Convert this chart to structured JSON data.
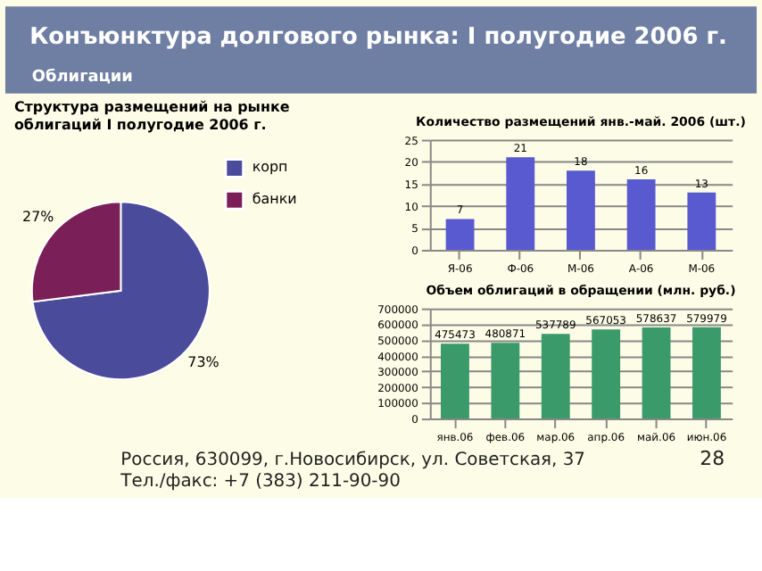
{
  "chart_data": [
    {
      "type": "other",
      "title": "Конъюнктура долгового рынка: I полугодие 2006 г.",
      "subtitle": "Облигации",
      "annotations": [
        "Россия, 630099, г.Новосибирск, ул. Советская, 37",
        "Тел./факс: +7 (383) 211-90-90",
        "28"
      ]
    },
    {
      "type": "pie",
      "title": "Структура размещений на рынке облигаций I полугодие 2006 г.",
      "categories": [
        "корп",
        "банки"
      ],
      "values": [
        73,
        27
      ],
      "colors": [
        "#4b4b9c",
        "#7a1f58"
      ],
      "value_labels": [
        "73%",
        "27%"
      ],
      "legend": "right"
    },
    {
      "type": "bar",
      "title": "Количество размещений янв.-май. 2006 (шт.)",
      "categories": [
        "Я-06",
        "Ф-06",
        "М-06",
        "А-06",
        "М-06"
      ],
      "values": [
        7,
        21,
        18,
        16,
        13
      ],
      "color": "#5a5ad0",
      "ylim": [
        0,
        25
      ],
      "yticks": [
        0,
        5,
        10,
        15,
        20,
        25
      ],
      "grid": "y",
      "data_labels": true
    },
    {
      "type": "bar",
      "title": "Объем облигаций в обращении (млн. руб.)",
      "categories": [
        "янв.06",
        "фев.06",
        "мар.06",
        "апр.06",
        "май.06",
        "июн.06"
      ],
      "values": [
        475473,
        480871,
        537789,
        567053,
        578637,
        579979
      ],
      "color": "#3a9a6a",
      "ylim": [
        0,
        700000
      ],
      "yticks": [
        0,
        100000,
        200000,
        300000,
        400000,
        500000,
        600000,
        700000
      ],
      "grid": "y",
      "data_labels": true
    }
  ]
}
